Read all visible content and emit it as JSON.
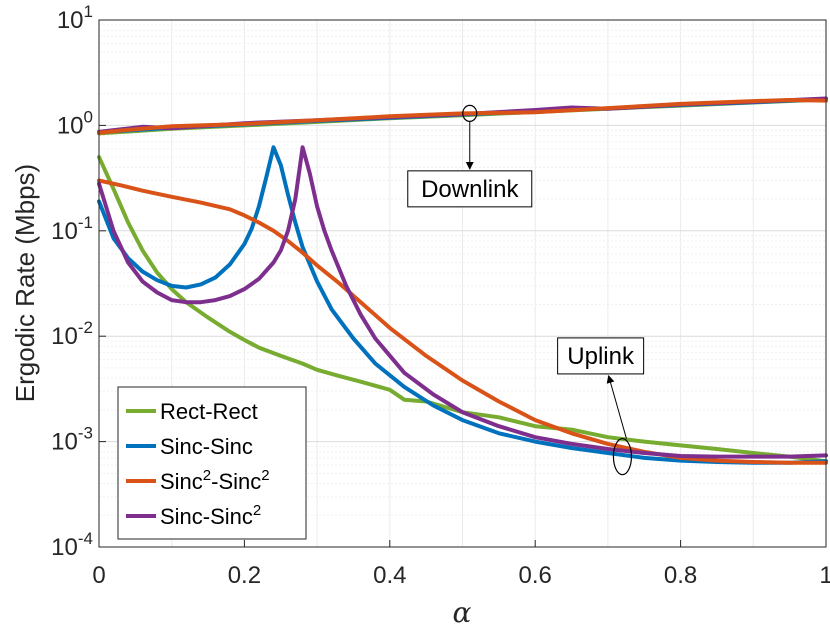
{
  "chart_data": {
    "type": "line",
    "xlabel": "α",
    "ylabel": "Ergodic Rate (Mbps)",
    "yscale": "log",
    "xlim": [
      0,
      1
    ],
    "ylim": [
      0.0001,
      10
    ],
    "x_ticks": [
      "0",
      "0.2",
      "0.4",
      "0.6",
      "0.8",
      "1"
    ],
    "y_ticks": [
      {
        "base": "10",
        "exp": "-4",
        "value": 0.0001
      },
      {
        "base": "10",
        "exp": "-3",
        "value": 0.001
      },
      {
        "base": "10",
        "exp": "-2",
        "value": 0.01
      },
      {
        "base": "10",
        "exp": "-1",
        "value": 0.1
      },
      {
        "base": "10",
        "exp": "0",
        "value": 1
      },
      {
        "base": "10",
        "exp": "1",
        "value": 10
      }
    ],
    "grid": true,
    "legend_position": "bottom-left",
    "series": [
      {
        "name": "Rect-Rect",
        "label_parts": [
          "Rect-Rect"
        ],
        "color": "#77AC30",
        "group": "uplink",
        "x": [
          0,
          0.02,
          0.04,
          0.06,
          0.08,
          0.1,
          0.12,
          0.15,
          0.18,
          0.2,
          0.22,
          0.25,
          0.28,
          0.3,
          0.33,
          0.36,
          0.4,
          0.42,
          0.45,
          0.5,
          0.55,
          0.6,
          0.65,
          0.7,
          0.75,
          0.8,
          0.85,
          0.9,
          0.95,
          1.0
        ],
        "values": [
          0.5,
          0.25,
          0.12,
          0.065,
          0.04,
          0.028,
          0.021,
          0.015,
          0.011,
          0.0092,
          0.0078,
          0.0065,
          0.0055,
          0.0048,
          0.0042,
          0.0037,
          0.0031,
          0.0025,
          0.0024,
          0.0019,
          0.0017,
          0.0014,
          0.0013,
          0.0011,
          0.001,
          0.00092,
          0.00085,
          0.00078,
          0.00072,
          0.00065
        ]
      },
      {
        "name": "Sinc-Sinc",
        "label_parts": [
          "Sinc-Sinc"
        ],
        "color": "#0072BD",
        "group": "uplink",
        "x": [
          0,
          0.02,
          0.04,
          0.06,
          0.08,
          0.1,
          0.12,
          0.14,
          0.16,
          0.18,
          0.2,
          0.21,
          0.22,
          0.23,
          0.24,
          0.25,
          0.26,
          0.27,
          0.28,
          0.3,
          0.32,
          0.35,
          0.38,
          0.42,
          0.46,
          0.5,
          0.55,
          0.6,
          0.65,
          0.7,
          0.75,
          0.8,
          0.85,
          0.9,
          0.95,
          1.0
        ],
        "values": [
          0.19,
          0.085,
          0.055,
          0.041,
          0.034,
          0.03,
          0.029,
          0.031,
          0.036,
          0.048,
          0.075,
          0.105,
          0.17,
          0.32,
          0.62,
          0.42,
          0.22,
          0.12,
          0.07,
          0.033,
          0.018,
          0.0095,
          0.0055,
          0.0033,
          0.0022,
          0.0016,
          0.0012,
          0.001,
          0.00087,
          0.00078,
          0.0007,
          0.00066,
          0.00064,
          0.00063,
          0.00063,
          0.00065
        ]
      },
      {
        "name": "Sinc²-Sinc²",
        "label_parts": [
          "Sinc",
          "2",
          "-Sinc",
          "2"
        ],
        "color": "#D95319",
        "group": "uplink",
        "x": [
          0,
          0.03,
          0.06,
          0.1,
          0.14,
          0.18,
          0.2,
          0.22,
          0.24,
          0.26,
          0.28,
          0.3,
          0.33,
          0.36,
          0.4,
          0.45,
          0.5,
          0.55,
          0.6,
          0.65,
          0.7,
          0.75,
          0.8,
          0.85,
          0.9,
          0.95,
          1.0
        ],
        "values": [
          0.3,
          0.27,
          0.24,
          0.21,
          0.185,
          0.16,
          0.14,
          0.12,
          0.1,
          0.08,
          0.062,
          0.047,
          0.032,
          0.021,
          0.012,
          0.0065,
          0.0038,
          0.0024,
          0.0016,
          0.0012,
          0.00095,
          0.0008,
          0.0007,
          0.00066,
          0.00064,
          0.00063,
          0.00063
        ]
      },
      {
        "name": "Sinc-Sinc²",
        "label_parts": [
          "Sinc-Sinc",
          "2"
        ],
        "color": "#7E2F8E",
        "group": "uplink",
        "x": [
          0,
          0.02,
          0.04,
          0.06,
          0.08,
          0.1,
          0.12,
          0.14,
          0.16,
          0.18,
          0.2,
          0.22,
          0.24,
          0.25,
          0.26,
          0.27,
          0.28,
          0.29,
          0.3,
          0.31,
          0.32,
          0.34,
          0.36,
          0.38,
          0.42,
          0.46,
          0.5,
          0.55,
          0.6,
          0.65,
          0.7,
          0.75,
          0.8,
          0.85,
          0.9,
          0.95,
          1.0
        ],
        "values": [
          0.28,
          0.1,
          0.05,
          0.033,
          0.026,
          0.022,
          0.021,
          0.021,
          0.022,
          0.024,
          0.028,
          0.035,
          0.05,
          0.065,
          0.1,
          0.2,
          0.62,
          0.35,
          0.17,
          0.1,
          0.065,
          0.03,
          0.016,
          0.0095,
          0.0045,
          0.0028,
          0.0019,
          0.0014,
          0.0011,
          0.00095,
          0.00085,
          0.00078,
          0.00073,
          0.00072,
          0.00072,
          0.00072,
          0.00074
        ]
      },
      {
        "name": "Downlink (Rect-Rect)",
        "color": "#77AC30",
        "group": "downlink",
        "x": [
          0,
          0.1,
          0.2,
          0.3,
          0.4,
          0.5,
          0.6,
          0.7,
          0.8,
          0.9,
          1.0
        ],
        "values": [
          0.84,
          0.93,
          1.0,
          1.08,
          1.17,
          1.25,
          1.34,
          1.44,
          1.54,
          1.65,
          1.76
        ]
      },
      {
        "name": "Downlink (Sinc-Sinc)",
        "color": "#0072BD",
        "group": "downlink",
        "x": [
          0,
          0.1,
          0.2,
          0.3,
          0.4,
          0.5,
          0.6,
          0.7,
          0.8,
          0.9,
          1.0
        ],
        "values": [
          0.86,
          0.95,
          1.02,
          1.1,
          1.18,
          1.27,
          1.36,
          1.45,
          1.56,
          1.66,
          1.78
        ]
      },
      {
        "name": "Downlink (Sinc-Sinc²)",
        "color": "#7E2F8E",
        "group": "downlink",
        "x": [
          0,
          0.06,
          0.1,
          0.2,
          0.3,
          0.4,
          0.5,
          0.6,
          0.65,
          0.7,
          0.8,
          0.9,
          1.0
        ],
        "values": [
          0.87,
          0.97,
          0.94,
          1.05,
          1.12,
          1.2,
          1.28,
          1.4,
          1.48,
          1.44,
          1.58,
          1.68,
          1.8
        ]
      },
      {
        "name": "Downlink (Sinc²-Sinc²)",
        "color": "#D95319",
        "group": "downlink",
        "x": [
          0,
          0.05,
          0.1,
          0.2,
          0.3,
          0.4,
          0.5,
          0.6,
          0.7,
          0.8,
          0.9,
          0.95,
          1.0
        ],
        "values": [
          0.85,
          0.92,
          0.98,
          1.03,
          1.12,
          1.22,
          1.3,
          1.33,
          1.46,
          1.6,
          1.7,
          1.74,
          1.72
        ]
      }
    ],
    "annotations": [
      {
        "text": "Downlink",
        "ellipse_at": [
          0.51,
          1.3
        ],
        "label_at": [
          0.51,
          0.25
        ]
      },
      {
        "text": "Uplink",
        "ellipse_at": [
          0.72,
          0.00072
        ],
        "label_at": [
          0.69,
          0.0065
        ]
      }
    ]
  }
}
